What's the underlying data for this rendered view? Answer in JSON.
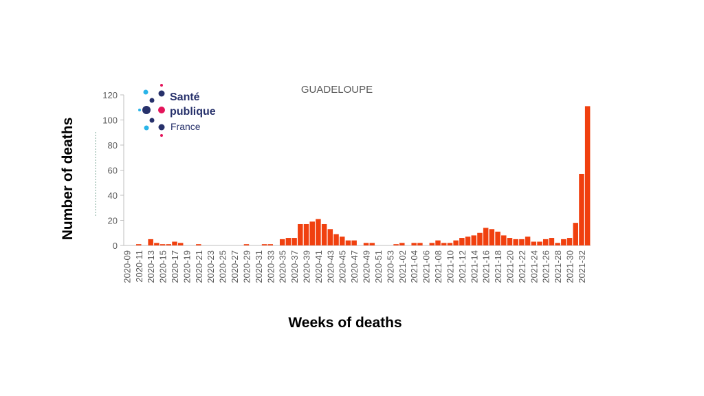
{
  "logo": {
    "line1": "Santé",
    "line2": "publique",
    "line3": "France"
  },
  "colors": {
    "bar": "#f0400f",
    "axis": "#bfbfbf",
    "text": "#595959",
    "logo_navy": "#27316b",
    "logo_cyan": "#2ab4e8",
    "logo_pink": "#e4145a"
  },
  "chart_data": {
    "type": "bar",
    "title": "GUADELOUPE",
    "xlabel": "Weeks of deaths",
    "ylabel": "Number  of deaths",
    "ylim": [
      0,
      120
    ],
    "yticks": [
      0,
      20,
      40,
      60,
      80,
      100,
      120
    ],
    "grid": false,
    "tick_labels": [
      "2020-09",
      "2020-11",
      "2020-13",
      "2020-15",
      "2020-17",
      "2020-19",
      "2020-21",
      "2020-23",
      "2020-25",
      "2020-27",
      "2020-29",
      "2020-31",
      "2020-33",
      "2020-35",
      "2020-37",
      "2020-39",
      "2020-41",
      "2020-43",
      "2020-45",
      "2020-47",
      "2020-49",
      "2020-51",
      "2020-53",
      "2021-02",
      "2021-04",
      "2021-06",
      "2021-08",
      "2021-10",
      "2021-12",
      "2021-14",
      "2021-16",
      "2021-18",
      "2021-20",
      "2021-22",
      "2021-24",
      "2021-26",
      "2021-28",
      "2021-30",
      "2021-32"
    ],
    "categories": [
      "2020-09",
      "2020-10",
      "2020-11",
      "2020-12",
      "2020-13",
      "2020-14",
      "2020-15",
      "2020-16",
      "2020-17",
      "2020-18",
      "2020-19",
      "2020-20",
      "2020-21",
      "2020-22",
      "2020-23",
      "2020-24",
      "2020-25",
      "2020-26",
      "2020-27",
      "2020-28",
      "2020-29",
      "2020-30",
      "2020-31",
      "2020-32",
      "2020-33",
      "2020-34",
      "2020-35",
      "2020-36",
      "2020-37",
      "2020-38",
      "2020-39",
      "2020-40",
      "2020-41",
      "2020-42",
      "2020-43",
      "2020-44",
      "2020-45",
      "2020-46",
      "2020-47",
      "2020-48",
      "2020-49",
      "2020-50",
      "2020-51",
      "2020-52",
      "2020-53",
      "2021-01",
      "2021-02",
      "2021-03",
      "2021-04",
      "2021-05",
      "2021-06",
      "2021-07",
      "2021-08",
      "2021-09",
      "2021-10",
      "2021-11",
      "2021-12",
      "2021-13",
      "2021-14",
      "2021-15",
      "2021-16",
      "2021-17",
      "2021-18",
      "2021-19",
      "2021-20",
      "2021-21",
      "2021-22",
      "2021-23",
      "2021-24",
      "2021-25",
      "2021-26",
      "2021-27",
      "2021-28",
      "2021-29",
      "2021-30",
      "2021-31",
      "2021-32",
      "2021-33"
    ],
    "values": [
      0,
      0,
      1,
      0,
      5,
      2,
      1,
      1,
      3,
      2,
      0,
      0,
      1,
      0,
      0,
      0,
      0,
      0,
      0,
      0,
      1,
      0,
      0,
      1,
      1,
      0,
      5,
      6,
      6,
      17,
      17,
      19,
      21,
      17,
      13,
      9,
      7,
      4,
      4,
      0,
      2,
      2,
      0,
      0,
      0,
      1,
      2,
      0,
      2,
      2,
      0,
      2,
      4,
      2,
      2,
      4,
      6,
      7,
      8,
      10,
      14,
      13,
      11,
      8,
      6,
      5,
      5,
      7,
      3,
      3,
      5,
      6,
      2,
      5,
      6,
      18,
      57,
      111
    ]
  }
}
